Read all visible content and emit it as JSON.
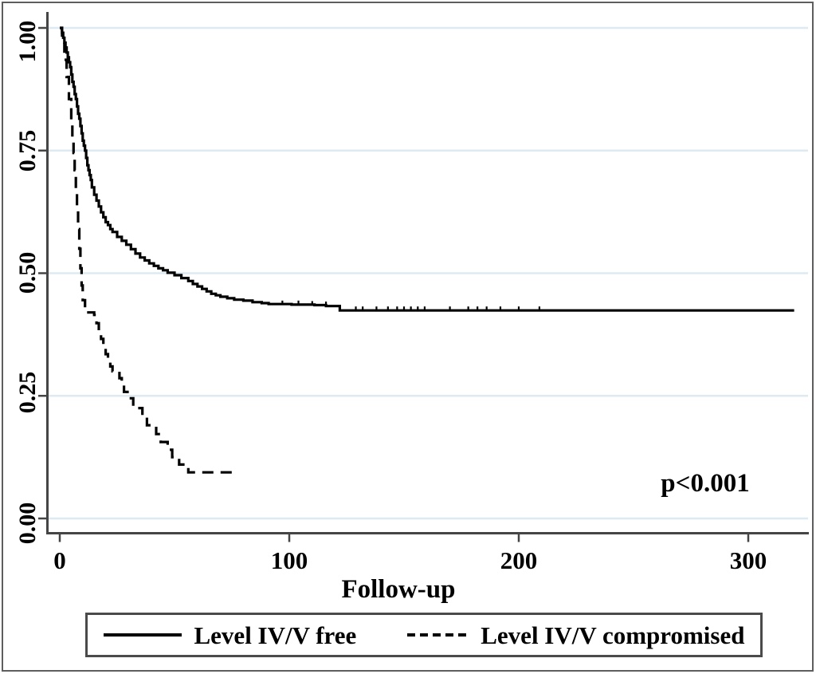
{
  "colors": {
    "background": "#ffffff",
    "frame_border": "#5e5e5e",
    "axis": "#454545",
    "gridline": "#deeaf1",
    "curve": "#000000",
    "text": "#000000",
    "legend_border": "#4b4b4b"
  },
  "chart_data": {
    "type": "line",
    "subtype": "kaplan-meier-step",
    "title": "",
    "xlabel": "Follow-up",
    "ylabel": "",
    "xlim": [
      0,
      325
    ],
    "ylim": [
      0.0,
      1.0
    ],
    "xticks": [
      0,
      100,
      200,
      300
    ],
    "xtick_labels": [
      "0",
      "100",
      "200",
      "300"
    ],
    "yticks": [
      0.0,
      0.25,
      0.5,
      0.75,
      1.0
    ],
    "ytick_labels": [
      "0.00",
      "0.25",
      "0.50",
      "0.75",
      "1.00"
    ],
    "grid": "horizontal gridlines at every y tick",
    "annotation": "p<0.001",
    "legend_position": "bottom-center, boxed",
    "series": [
      {
        "name": "Level IV/V free",
        "line_style": "solid",
        "color": "#000000",
        "points": [
          [
            0,
            1.0
          ],
          [
            1,
            0.99
          ],
          [
            1.5,
            0.98
          ],
          [
            2,
            0.97
          ],
          [
            2.5,
            0.96
          ],
          [
            3,
            0.95
          ],
          [
            3.5,
            0.94
          ],
          [
            4,
            0.93
          ],
          [
            4.5,
            0.92
          ],
          [
            5,
            0.905
          ],
          [
            5.5,
            0.89
          ],
          [
            6,
            0.88
          ],
          [
            6.5,
            0.865
          ],
          [
            7,
            0.855
          ],
          [
            7.5,
            0.84
          ],
          [
            8,
            0.825
          ],
          [
            8.5,
            0.815
          ],
          [
            9,
            0.8
          ],
          [
            9.5,
            0.785
          ],
          [
            10,
            0.77
          ],
          [
            10.5,
            0.76
          ],
          [
            11,
            0.75
          ],
          [
            11.5,
            0.735
          ],
          [
            12,
            0.72
          ],
          [
            12.5,
            0.71
          ],
          [
            13,
            0.7
          ],
          [
            13.5,
            0.69
          ],
          [
            14,
            0.675
          ],
          [
            15,
            0.66
          ],
          [
            16,
            0.648
          ],
          [
            17,
            0.636
          ],
          [
            18,
            0.624
          ],
          [
            19,
            0.614
          ],
          [
            20,
            0.604
          ],
          [
            21,
            0.598
          ],
          [
            22,
            0.59
          ],
          [
            23,
            0.584
          ],
          [
            25,
            0.574
          ],
          [
            27,
            0.566
          ],
          [
            29,
            0.558
          ],
          [
            31,
            0.549
          ],
          [
            33,
            0.54
          ],
          [
            35,
            0.532
          ],
          [
            37,
            0.526
          ],
          [
            39,
            0.52
          ],
          [
            41,
            0.515
          ],
          [
            43,
            0.51
          ],
          [
            45,
            0.506
          ],
          [
            47,
            0.501
          ],
          [
            50,
            0.496
          ],
          [
            53,
            0.49
          ],
          [
            56,
            0.484
          ],
          [
            58,
            0.478
          ],
          [
            60,
            0.473
          ],
          [
            62,
            0.468
          ],
          [
            64,
            0.463
          ],
          [
            66,
            0.458
          ],
          [
            68,
            0.455
          ],
          [
            70,
            0.452
          ],
          [
            73,
            0.449
          ],
          [
            76,
            0.446
          ],
          [
            80,
            0.444
          ],
          [
            84,
            0.441
          ],
          [
            88,
            0.439
          ],
          [
            91,
            0.437
          ],
          [
            101,
            0.436
          ],
          [
            111,
            0.435
          ],
          [
            116,
            0.433
          ],
          [
            122,
            0.424
          ],
          [
            320,
            0.424
          ]
        ],
        "censor_marks": [
          [
            97,
            0.436
          ],
          [
            104,
            0.436
          ],
          [
            110,
            0.435
          ],
          [
            116,
            0.434
          ],
          [
            129,
            0.424
          ],
          [
            132,
            0.424
          ],
          [
            138,
            0.424
          ],
          [
            143,
            0.424
          ],
          [
            147,
            0.424
          ],
          [
            150,
            0.424
          ],
          [
            153,
            0.424
          ],
          [
            156,
            0.424
          ],
          [
            159,
            0.424
          ],
          [
            170,
            0.424
          ],
          [
            178,
            0.424
          ],
          [
            182,
            0.424
          ],
          [
            186,
            0.424
          ],
          [
            192,
            0.424
          ],
          [
            200,
            0.424
          ],
          [
            209,
            0.424
          ]
        ]
      },
      {
        "name": "Level IV/V compromised",
        "line_style": "dashed",
        "color": "#000000",
        "points": [
          [
            0,
            1.0
          ],
          [
            1,
            0.97
          ],
          [
            2,
            0.935
          ],
          [
            3,
            0.9
          ],
          [
            4,
            0.855
          ],
          [
            5,
            0.81
          ],
          [
            5.5,
            0.775
          ],
          [
            6,
            0.745
          ],
          [
            6.5,
            0.71
          ],
          [
            7,
            0.67
          ],
          [
            7.5,
            0.63
          ],
          [
            8,
            0.59
          ],
          [
            8.5,
            0.55
          ],
          [
            9,
            0.51
          ],
          [
            9.5,
            0.475
          ],
          [
            10,
            0.445
          ],
          [
            11,
            0.42
          ],
          [
            15,
            0.415
          ],
          [
            16,
            0.398
          ],
          [
            17,
            0.382
          ],
          [
            18,
            0.366
          ],
          [
            19,
            0.35
          ],
          [
            20,
            0.335
          ],
          [
            21,
            0.322
          ],
          [
            22,
            0.31
          ],
          [
            23,
            0.3
          ],
          [
            26,
            0.286
          ],
          [
            27,
            0.272
          ],
          [
            28,
            0.258
          ],
          [
            29.5,
            0.245
          ],
          [
            32,
            0.225
          ],
          [
            36,
            0.208
          ],
          [
            38,
            0.19
          ],
          [
            42,
            0.172
          ],
          [
            44,
            0.156
          ],
          [
            47,
            0.14
          ],
          [
            49,
            0.125
          ],
          [
            52,
            0.11
          ],
          [
            56,
            0.094
          ],
          [
            76,
            0.094
          ]
        ],
        "censor_marks": []
      }
    ]
  }
}
